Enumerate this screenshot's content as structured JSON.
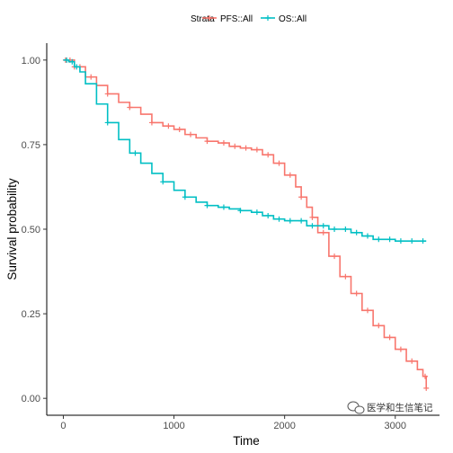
{
  "chart_data": {
    "type": "line",
    "subtype": "kaplan-meier step curve with censor marks",
    "xlabel": "Time",
    "ylabel": "Survival probability",
    "xlim": [
      -150,
      3400
    ],
    "ylim": [
      -0.05,
      1.05
    ],
    "x_ticks": [
      {
        "value": 0,
        "label": "0"
      },
      {
        "value": 1000,
        "label": "1000"
      },
      {
        "value": 2000,
        "label": "2000"
      },
      {
        "value": 3000,
        "label": "3000"
      }
    ],
    "y_ticks": [
      {
        "value": 0.0,
        "label": "0.00"
      },
      {
        "value": 0.25,
        "label": "0.25"
      },
      {
        "value": 0.5,
        "label": "0.50"
      },
      {
        "value": 0.75,
        "label": "0.75"
      },
      {
        "value": 1.0,
        "label": "1.00"
      }
    ],
    "legend": {
      "title": "Strata",
      "position": "top"
    },
    "grid": false,
    "series": [
      {
        "name": "PFS::All",
        "color": "#F8766D",
        "x": [
          0,
          100,
          200,
          300,
          400,
          500,
          600,
          700,
          800,
          900,
          1000,
          1100,
          1200,
          1300,
          1400,
          1500,
          1600,
          1700,
          1800,
          1900,
          2000,
          2100,
          2150,
          2200,
          2250,
          2300,
          2400,
          2500,
          2600,
          2700,
          2800,
          2900,
          3000,
          3100,
          3200,
          3250,
          3280
        ],
        "y": [
          1.0,
          0.98,
          0.95,
          0.925,
          0.9,
          0.875,
          0.86,
          0.84,
          0.815,
          0.805,
          0.795,
          0.78,
          0.77,
          0.76,
          0.755,
          0.745,
          0.74,
          0.735,
          0.72,
          0.695,
          0.66,
          0.625,
          0.595,
          0.565,
          0.535,
          0.49,
          0.42,
          0.36,
          0.31,
          0.26,
          0.215,
          0.18,
          0.145,
          0.11,
          0.085,
          0.065,
          0.03
        ],
        "censor_x": [
          20,
          60,
          100,
          150,
          250,
          400,
          600,
          800,
          950,
          1050,
          1150,
          1300,
          1450,
          1550,
          1650,
          1750,
          1850,
          1950,
          2050,
          2150,
          2250,
          2350,
          2450,
          2550,
          2650,
          2750,
          2850,
          2950,
          3050,
          3150,
          3270,
          3280
        ]
      },
      {
        "name": "OS::All",
        "color": "#00BFC4",
        "x": [
          0,
          50,
          100,
          150,
          200,
          300,
          400,
          500,
          600,
          700,
          800,
          900,
          1000,
          1100,
          1200,
          1300,
          1400,
          1500,
          1600,
          1700,
          1800,
          1900,
          2000,
          2200,
          2400,
          2600,
          2700,
          2800,
          3000,
          3200,
          3280
        ],
        "y": [
          1.0,
          0.995,
          0.98,
          0.965,
          0.93,
          0.87,
          0.815,
          0.765,
          0.725,
          0.695,
          0.665,
          0.64,
          0.615,
          0.595,
          0.58,
          0.57,
          0.565,
          0.56,
          0.555,
          0.55,
          0.54,
          0.53,
          0.525,
          0.51,
          0.5,
          0.49,
          0.48,
          0.47,
          0.465,
          0.465,
          0.465
        ],
        "censor_x": [
          30,
          80,
          120,
          400,
          650,
          900,
          1100,
          1300,
          1450,
          1600,
          1750,
          1850,
          1950,
          2050,
          2150,
          2250,
          2350,
          2450,
          2550,
          2650,
          2750,
          2850,
          2950,
          3050,
          3150,
          3250
        ]
      }
    ]
  },
  "watermark": {
    "text": "医学和生信笔记",
    "icon": "wechat-icon"
  }
}
